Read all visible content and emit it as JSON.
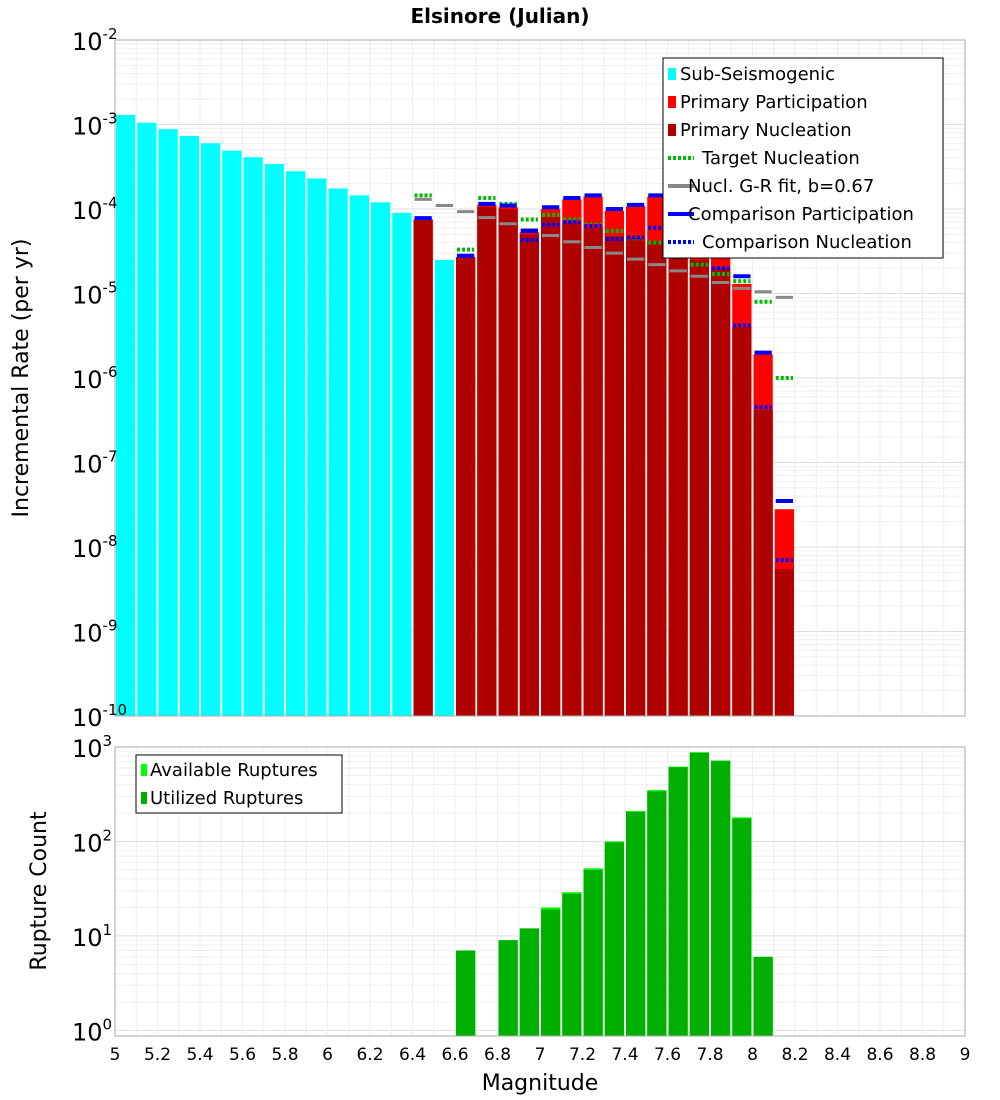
{
  "chart_data": [
    {
      "type": "bar",
      "title": "Elsinore (Julian)",
      "xlabel": "Magnitude",
      "ylabel": "Incremental Rate (per yr)",
      "yscale": "log",
      "ylim_exp": [
        -10,
        -2
      ],
      "xlim": [
        5,
        9
      ],
      "bin_width": 0.1,
      "ytick_exponents": [
        "-10",
        "-9",
        "-8",
        "-7",
        "-6",
        "-5",
        "-4",
        "-3",
        "-2"
      ],
      "legend": [
        "Sub-Seismogenic",
        "Primary Participation",
        "Primary Nucleation",
        "Target Nucleation",
        "Nucl. G-R fit, b=0.67",
        "Comparison Participation",
        "Comparison Nucleation"
      ],
      "colors": {
        "sub": "#00ffff",
        "participation": "#ff0000",
        "nucleation": "#b00000",
        "target": "#00bb00",
        "gr": "#888888",
        "comp_part": "#0000ff",
        "comp_nucl": "#0000ff"
      },
      "series": [
        {
          "name": "Sub-Seismogenic",
          "x": [
            5.05,
            5.15,
            5.25,
            5.35,
            5.45,
            5.55,
            5.65,
            5.75,
            5.85,
            5.95,
            6.05,
            6.15,
            6.25,
            6.35,
            6.45,
            6.55
          ],
          "values": [
            0.0013,
            0.00105,
            0.00088,
            0.00073,
            0.0006,
            0.00049,
            0.00041,
            0.00034,
            0.00028,
            0.00023,
            0.000175,
            0.000145,
            0.00012,
            9e-05,
            6e-05,
            2.5e-05
          ]
        },
        {
          "name": "Primary Participation",
          "x": [
            6.45,
            6.65,
            6.75,
            6.85,
            6.95,
            7.05,
            7.15,
            7.25,
            7.35,
            7.45,
            7.55,
            7.65,
            7.75,
            7.85,
            7.95,
            8.05,
            8.15
          ],
          "values": [
            7.5e-05,
            2.7e-05,
            0.000112,
            0.000105,
            5.3e-05,
            0.0001,
            0.00013,
            0.00014,
            9.5e-05,
            0.000108,
            0.00014,
            0.000115,
            9e-05,
            6e-05,
            1.3e-05,
            1.9e-06,
            2.8e-08
          ]
        },
        {
          "name": "Primary Nucleation",
          "x": [
            6.45,
            6.65,
            6.75,
            6.85,
            6.95,
            7.05,
            7.15,
            7.25,
            7.35,
            7.45,
            7.55,
            7.65,
            7.75,
            7.85,
            7.95,
            8.05,
            8.15
          ],
          "values": [
            7.5e-05,
            2.7e-05,
            0.000105,
            0.0001,
            5e-05,
            8e-05,
            7e-05,
            6e-05,
            4.8e-05,
            4.5e-05,
            4.2e-05,
            3e-05,
            2.5e-05,
            2e-05,
            4e-06,
            4.2e-07,
            5.5e-09
          ]
        },
        {
          "name": "Target Nucleation",
          "x": [
            6.45,
            6.65,
            6.75,
            6.85,
            6.95,
            7.05,
            7.15,
            7.25,
            7.35,
            7.45,
            7.55,
            7.65,
            7.75,
            7.85,
            7.95,
            8.05,
            8.15
          ],
          "values": [
            0.000145,
            3.3e-05,
            0.000135,
            0.000115,
            7.5e-05,
            8.5e-05,
            7.5e-05,
            6.5e-05,
            5.5e-05,
            4.5e-05,
            4e-05,
            2.8e-05,
            2.2e-05,
            1.7e-05,
            1.4e-05,
            8e-06,
            1e-06
          ]
        },
        {
          "name": "Nucl. G-R fit, b=0.67",
          "x": [
            6.45,
            6.55,
            6.65,
            6.75,
            6.85,
            6.95,
            7.05,
            7.15,
            7.25,
            7.35,
            7.45,
            7.55,
            7.65,
            7.75,
            7.85,
            7.95,
            8.05,
            8.15
          ],
          "values": [
            0.00013,
            0.00011,
            9.3e-05,
            7.9e-05,
            6.7e-05,
            5.7e-05,
            4.85e-05,
            4.1e-05,
            3.5e-05,
            3e-05,
            2.55e-05,
            2.2e-05,
            1.85e-05,
            1.6e-05,
            1.35e-05,
            1.15e-05,
            1.05e-05,
            9e-06
          ]
        },
        {
          "name": "Comparison Participation",
          "x": [
            6.45,
            6.65,
            6.75,
            6.85,
            6.95,
            7.05,
            7.15,
            7.25,
            7.35,
            7.45,
            7.55,
            7.65,
            7.75,
            7.85,
            7.95,
            8.05,
            8.15
          ],
          "values": [
            7.8e-05,
            2.8e-05,
            0.000115,
            0.00011,
            5.5e-05,
            0.000105,
            0.000135,
            0.000145,
            0.0001,
            0.000112,
            0.000145,
            0.000125,
            9.5e-05,
            6.2e-05,
            1.6e-05,
            2e-06,
            3.5e-08
          ]
        },
        {
          "name": "Comparison Nucleation",
          "x": [
            6.95,
            7.05,
            7.15,
            7.25,
            7.35,
            7.45,
            7.55,
            7.65,
            7.75,
            7.85,
            7.95,
            8.05,
            8.15
          ],
          "values": [
            4.3e-05,
            6.5e-05,
            7e-05,
            6.3e-05,
            4.4e-05,
            4.6e-05,
            6e-05,
            4.4e-05,
            3.6e-05,
            2e-05,
            4.2e-06,
            4.5e-07,
            7e-09
          ]
        }
      ]
    },
    {
      "type": "bar",
      "xlabel": "Magnitude",
      "ylabel": "Rupture Count",
      "yscale": "log",
      "ylim_exp": [
        -0.06,
        3
      ],
      "ytick_exponents": [
        "0",
        "1",
        "2",
        "3"
      ],
      "xticks": [
        "5",
        "5.2",
        "5.4",
        "5.6",
        "5.8",
        "6",
        "6.2",
        "6.4",
        "6.6",
        "6.8",
        "7",
        "7.2",
        "7.4",
        "7.6",
        "7.8",
        "8",
        "8.2",
        "8.4",
        "8.6",
        "8.8",
        "9"
      ],
      "legend": [
        "Available Ruptures",
        "Utilized Ruptures"
      ],
      "colors": {
        "available": "#00ff00",
        "utilized": "#00b000"
      },
      "series": [
        {
          "name": "Available Ruptures",
          "x": [
            6.65,
            6.85,
            6.95,
            7.05,
            7.15,
            7.25,
            7.35,
            7.45,
            7.55,
            7.65,
            7.75,
            7.85,
            7.95,
            8.05
          ],
          "values": [
            7,
            9,
            12,
            20,
            29,
            52,
            100,
            210,
            350,
            620,
            880,
            720,
            180,
            6
          ]
        },
        {
          "name": "Utilized Ruptures",
          "x": [
            6.65,
            6.85,
            6.95,
            7.05,
            7.15,
            7.25,
            7.35,
            7.45,
            7.55,
            7.65,
            7.75,
            7.85,
            7.95,
            8.05
          ],
          "values": [
            7,
            9,
            12,
            19,
            28,
            50,
            98,
            205,
            340,
            610,
            870,
            710,
            175,
            6
          ]
        }
      ]
    }
  ]
}
